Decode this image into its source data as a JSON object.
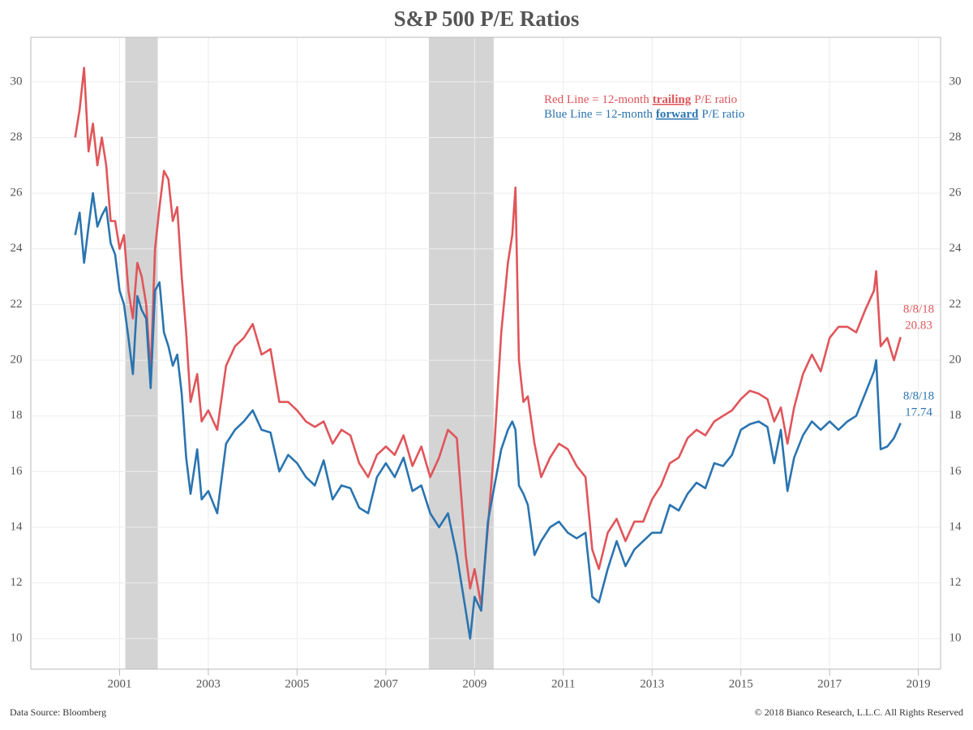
{
  "chart_data": {
    "type": "line",
    "title": "S&P 500 P/E Ratios",
    "footer_left": "Data Source: Bloomberg",
    "footer_right": "© 2018 Bianco Research, L.L.C. All Rights Reserved",
    "xlim": [
      1999.0,
      2019.5
    ],
    "xticks": [
      2001,
      2003,
      2005,
      2007,
      2009,
      2011,
      2013,
      2015,
      2017,
      2019
    ],
    "ylim": [
      8.9,
      31.6
    ],
    "yticks": [
      10,
      12,
      14,
      16,
      18,
      20,
      22,
      24,
      26,
      28,
      30
    ],
    "grid": true,
    "shaded_spans": [
      [
        2001.13,
        2001.86
      ],
      [
        2007.97,
        2009.43
      ]
    ],
    "x": [
      2000.0,
      2000.1,
      2000.2,
      2000.3,
      2000.4,
      2000.5,
      2000.6,
      2000.7,
      2000.8,
      2000.9,
      2001.0,
      2001.1,
      2001.2,
      2001.3,
      2001.4,
      2001.5,
      2001.6,
      2001.7,
      2001.8,
      2001.9,
      2002.0,
      2002.1,
      2002.2,
      2002.3,
      2002.4,
      2002.5,
      2002.6,
      2002.75,
      2002.85,
      2003.0,
      2003.2,
      2003.4,
      2003.6,
      2003.8,
      2004.0,
      2004.2,
      2004.4,
      2004.6,
      2004.8,
      2005.0,
      2005.2,
      2005.4,
      2005.6,
      2005.8,
      2006.0,
      2006.2,
      2006.4,
      2006.6,
      2006.8,
      2007.0,
      2007.2,
      2007.4,
      2007.6,
      2007.8,
      2008.0,
      2008.2,
      2008.4,
      2008.6,
      2008.8,
      2008.9,
      2009.0,
      2009.15,
      2009.3,
      2009.45,
      2009.6,
      2009.75,
      2009.85,
      2009.92,
      2010.0,
      2010.1,
      2010.2,
      2010.35,
      2010.5,
      2010.7,
      2010.9,
      2011.1,
      2011.3,
      2011.5,
      2011.65,
      2011.8,
      2012.0,
      2012.2,
      2012.4,
      2012.6,
      2012.8,
      2013.0,
      2013.2,
      2013.4,
      2013.6,
      2013.8,
      2014.0,
      2014.2,
      2014.4,
      2014.6,
      2014.8,
      2015.0,
      2015.2,
      2015.4,
      2015.6,
      2015.75,
      2015.9,
      2016.05,
      2016.2,
      2016.4,
      2016.6,
      2016.8,
      2017.0,
      2017.2,
      2017.4,
      2017.6,
      2017.8,
      2018.0,
      2018.05,
      2018.15,
      2018.3,
      2018.45,
      2018.6
    ],
    "series": [
      {
        "name_parts": [
          "Red Line = 12-month",
          "trailing",
          "P/E ratio"
        ],
        "color": "#e0555a",
        "end_date": "8/8/18",
        "values": [
          28,
          29,
          30.5,
          27.5,
          28.5,
          27,
          28,
          27,
          25,
          25,
          24,
          24.5,
          22.5,
          21.5,
          23.5,
          23,
          22,
          19.5,
          24,
          25.5,
          26.8,
          26.5,
          25,
          25.5,
          23,
          21,
          18.5,
          19.5,
          17.8,
          18.2,
          17.5,
          19.8,
          20.5,
          20.8,
          21.3,
          20.2,
          20.4,
          18.5,
          18.5,
          18.2,
          17.8,
          17.6,
          17.8,
          17.0,
          17.5,
          17.3,
          16.3,
          15.8,
          16.6,
          16.9,
          16.6,
          17.3,
          16.2,
          16.9,
          15.8,
          16.5,
          17.5,
          17.2,
          13,
          11.8,
          12.5,
          11.2,
          14,
          17,
          21,
          23.5,
          24.5,
          26.2,
          20,
          18.5,
          18.7,
          17,
          15.8,
          16.5,
          17,
          16.8,
          16.2,
          15.8,
          13.2,
          12.5,
          13.8,
          14.3,
          13.5,
          14.2,
          14.2,
          15,
          15.5,
          16.3,
          16.5,
          17.2,
          17.5,
          17.3,
          17.8,
          18.0,
          18.2,
          18.6,
          18.9,
          18.8,
          18.6,
          17.8,
          18.3,
          17.0,
          18.3,
          19.5,
          20.2,
          19.6,
          20.8,
          21.2,
          21.2,
          21.0,
          21.8,
          22.5,
          23.2,
          20.5,
          20.8,
          20.0,
          20.83
        ]
      },
      {
        "name_parts": [
          "Blue Line = 12-month",
          "forward",
          "P/E ratio"
        ],
        "color": "#2a74b0",
        "end_date": "8/8/18",
        "values": [
          24.5,
          25.3,
          23.5,
          24.8,
          26,
          24.8,
          25.2,
          25.5,
          24.2,
          23.8,
          22.5,
          22,
          20.8,
          19.5,
          22.3,
          21.8,
          21.5,
          19,
          22.5,
          22.8,
          21,
          20.5,
          19.8,
          20.2,
          18.8,
          16.5,
          15.2,
          16.8,
          15.0,
          15.3,
          14.5,
          17,
          17.5,
          17.8,
          18.2,
          17.5,
          17.4,
          16.0,
          16.6,
          16.3,
          15.8,
          15.5,
          16.4,
          15.0,
          15.5,
          15.4,
          14.7,
          14.5,
          15.8,
          16.3,
          15.8,
          16.5,
          15.3,
          15.5,
          14.5,
          14.0,
          14.5,
          13.0,
          11,
          10.0,
          11.5,
          11.0,
          14.2,
          15.5,
          16.8,
          17.5,
          17.8,
          17.5,
          15.5,
          15.2,
          14.8,
          13,
          13.5,
          14,
          14.2,
          13.8,
          13.6,
          13.8,
          11.5,
          11.3,
          12.5,
          13.5,
          12.6,
          13.2,
          13.5,
          13.8,
          13.8,
          14.8,
          14.6,
          15.2,
          15.6,
          15.4,
          16.3,
          16.2,
          16.6,
          17.5,
          17.7,
          17.8,
          17.6,
          16.3,
          17.5,
          15.3,
          16.5,
          17.3,
          17.8,
          17.5,
          17.8,
          17.5,
          17.8,
          18.0,
          18.8,
          19.6,
          20.0,
          16.8,
          16.9,
          17.2,
          17.74
        ]
      }
    ]
  }
}
